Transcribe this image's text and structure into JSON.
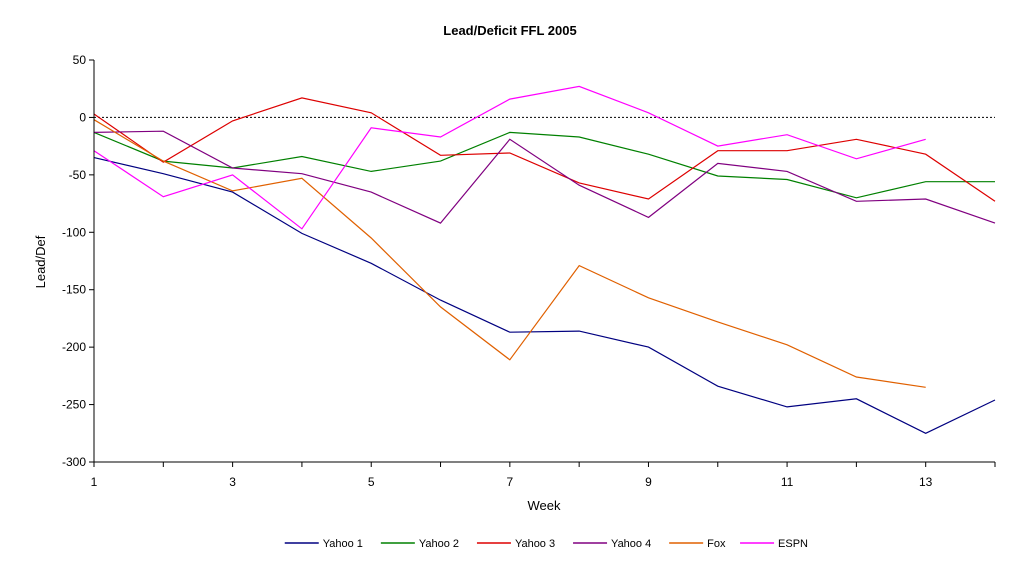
{
  "chart_data": {
    "type": "line",
    "title": "Lead/Deficit FFL 2005",
    "xlabel": "Week",
    "ylabel": "Lead/Def",
    "xlim": [
      1,
      14
    ],
    "ylim": [
      -300,
      50
    ],
    "xticks": [
      1,
      3,
      5,
      7,
      9,
      11,
      13
    ],
    "yticks": [
      50,
      0,
      -50,
      -100,
      -150,
      -200,
      -250,
      -300
    ],
    "reference_line": 0,
    "legend_position": "bottom",
    "x": [
      1,
      2,
      3,
      4,
      5,
      6,
      7,
      8,
      9,
      10,
      11,
      12,
      13,
      14
    ],
    "series": [
      {
        "name": "Yahoo 1",
        "color": "#000080",
        "values": [
          -35,
          -49,
          -65,
          -101,
          -127,
          -159,
          -187,
          -186,
          -200,
          -234,
          -252,
          -245,
          -275,
          -246
        ]
      },
      {
        "name": "Yahoo 2",
        "color": "#008000",
        "values": [
          -13,
          -38,
          -44,
          -34,
          -47,
          -38,
          -13,
          -17,
          -32,
          -51,
          -54,
          -70,
          -56,
          -56
        ]
      },
      {
        "name": "Yahoo 3",
        "color": "#dd0000",
        "values": [
          3,
          -39,
          -3,
          17,
          4,
          -33,
          -31,
          -57,
          -71,
          -29,
          -29,
          -19,
          -32,
          -73
        ]
      },
      {
        "name": "Yahoo 4",
        "color": "#800080",
        "values": [
          -13,
          -12,
          -44,
          -49,
          -65,
          -92,
          -19,
          -59,
          -87,
          -40,
          -47,
          -73,
          -71,
          -92
        ]
      },
      {
        "name": "Fox",
        "color": "#e06000",
        "values": [
          -2,
          -38,
          -64,
          -53,
          -105,
          -165,
          -211,
          -129,
          -157,
          -178,
          -198,
          -226,
          -235,
          null
        ]
      },
      {
        "name": "ESPN",
        "color": "#ff00ff",
        "values": [
          -29,
          -69,
          -50,
          -97,
          -9,
          -17,
          16,
          27,
          4,
          -25,
          -15,
          -36,
          -19,
          null
        ]
      }
    ]
  }
}
